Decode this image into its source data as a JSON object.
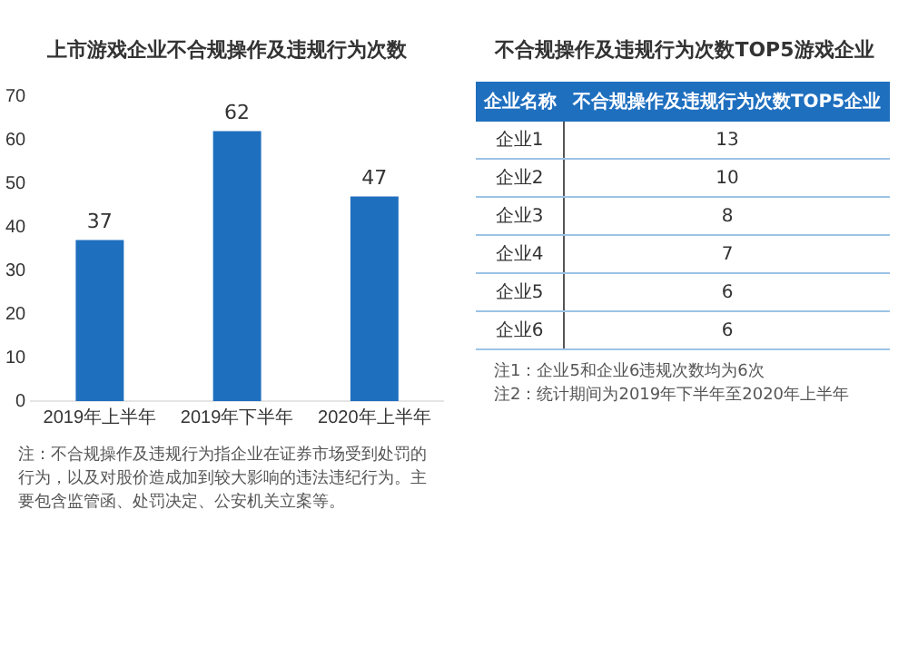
{
  "chart_data": [
    {
      "type": "bar",
      "title": "上市游戏企业不合规操作及违规行为次数",
      "categories": [
        "2019年上半年",
        "2019年下半年",
        "2020年上半年"
      ],
      "values": [
        37,
        62,
        47
      ],
      "color": "#1f6fbf",
      "ylim": [
        0,
        70
      ],
      "yticks": [
        0,
        10,
        20,
        30,
        40,
        50,
        60,
        70
      ],
      "grid": false,
      "legend": false,
      "data_labels": true,
      "annotations": [
        "注：不合规操作及违规行为指企业在证券市场受到处罚的行为，以及对股价造成加到较大影响的违法违纪行为。主要包含监管函、处罚决定、公安机关立案等。"
      ]
    },
    {
      "type": "other",
      "title": "不合规操作及违规行为次数TOP5游戏企业",
      "categories": [
        "企业名称",
        "不合规操作及违规行为次数TOP5企业"
      ],
      "y_categories": [
        "企业1",
        "企业2",
        "企业3",
        "企业4",
        "企业5",
        "企业6"
      ],
      "cell_labels": [
        [
          "13"
        ],
        [
          "10"
        ],
        [
          "8"
        ],
        [
          "7"
        ],
        [
          "6"
        ],
        [
          "6"
        ]
      ],
      "annotations": [
        "注1：企业5和企业6违规次数均为6次",
        "注2：统计期间为2019年下半年至2020年上半年"
      ]
    }
  ]
}
